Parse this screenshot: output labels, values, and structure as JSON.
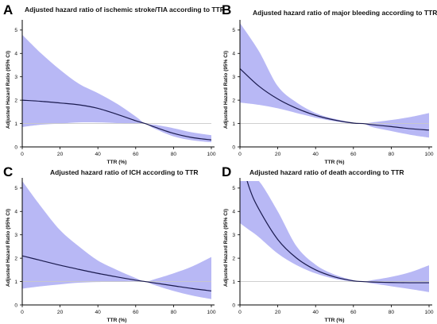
{
  "figure": {
    "panels": [
      {
        "letter": "A",
        "title": "Adjusted hazard ratio of ischemic stroke/TIA according to TTR"
      },
      {
        "letter": "B",
        "title": "Adjusted hazard ratio of major bleeding according to TTR"
      },
      {
        "letter": "C",
        "title": "Adjusted hazard ratio of ICH according to TTR"
      },
      {
        "letter": "D",
        "title": "Adjusted hazard ratio of death according to TTR"
      }
    ]
  },
  "chart_data": [
    {
      "type": "line",
      "title": "Adjusted hazard ratio of ischemic stroke/TIA according to TTR",
      "xlabel": "TTR (%)",
      "ylabel": "Adjusted Hazard Ratio (95% CI)",
      "xlim": [
        0,
        100
      ],
      "ylim": [
        0,
        5.3
      ],
      "xticks": [
        0,
        20,
        40,
        60,
        80,
        100
      ],
      "yticks": [
        0,
        1,
        2,
        3,
        4,
        5
      ],
      "reference_line": 1,
      "colors": {
        "line": "#1a1a4e",
        "band": "#b8b8f5"
      },
      "x": [
        0,
        10,
        20,
        30,
        40,
        50,
        60,
        65,
        70,
        80,
        90,
        100
      ],
      "series": [
        {
          "values": [
            2.0,
            1.95,
            1.88,
            1.8,
            1.65,
            1.4,
            1.12,
            1.0,
            0.85,
            0.58,
            0.4,
            0.3
          ]
        }
      ],
      "ci_lower": [
        0.85,
        0.95,
        1.0,
        1.05,
        1.05,
        1.02,
        1.0,
        1.0,
        0.78,
        0.45,
        0.28,
        0.2
      ],
      "ci_upper": [
        4.8,
        4.0,
        3.3,
        2.7,
        2.3,
        1.85,
        1.3,
        1.0,
        0.95,
        0.8,
        0.62,
        0.5
      ]
    },
    {
      "type": "line",
      "title": "Adjusted hazard ratio of major bleeding according to TTR",
      "xlabel": "TTR (%)",
      "ylabel": "Adjusted Hazard Ratio (95% CI)",
      "xlim": [
        0,
        100
      ],
      "ylim": [
        0,
        5.3
      ],
      "xticks": [
        0,
        20,
        40,
        60,
        80,
        100
      ],
      "yticks": [
        0,
        1,
        2,
        3,
        4,
        5
      ],
      "reference_line": 1,
      "colors": {
        "line": "#1a1a4e",
        "band": "#b8b8f5"
      },
      "x": [
        0,
        10,
        20,
        30,
        40,
        50,
        60,
        65,
        70,
        80,
        90,
        100
      ],
      "series": [
        {
          "values": [
            3.35,
            2.6,
            2.05,
            1.65,
            1.35,
            1.15,
            1.02,
            1.0,
            0.95,
            0.87,
            0.78,
            0.72
          ]
        }
      ],
      "ci_lower": [
        1.9,
        1.8,
        1.65,
        1.45,
        1.25,
        1.1,
        1.0,
        1.0,
        0.85,
        0.68,
        0.52,
        0.4
      ],
      "ci_upper": [
        5.3,
        4.1,
        2.6,
        1.9,
        1.45,
        1.2,
        1.04,
        1.0,
        1.05,
        1.15,
        1.28,
        1.45
      ]
    },
    {
      "type": "line",
      "title": "Adjusted hazard ratio of ICH according to TTR",
      "xlabel": "TTR (%)",
      "ylabel": "Adjusted Hazard Ratio (95% CI)",
      "xlim": [
        0,
        100
      ],
      "ylim": [
        0,
        5.3
      ],
      "xticks": [
        0,
        20,
        40,
        60,
        80,
        100
      ],
      "yticks": [
        0,
        1,
        2,
        3,
        4,
        5
      ],
      "reference_line": 1,
      "colors": {
        "line": "#1a1a4e",
        "band": "#b8b8f5"
      },
      "x": [
        0,
        10,
        20,
        30,
        40,
        50,
        60,
        65,
        70,
        80,
        90,
        100
      ],
      "series": [
        {
          "values": [
            2.1,
            1.9,
            1.7,
            1.52,
            1.35,
            1.2,
            1.06,
            1.0,
            0.94,
            0.82,
            0.7,
            0.6
          ]
        }
      ],
      "ci_lower": [
        0.7,
        0.8,
        0.88,
        0.95,
        0.98,
        1.0,
        1.0,
        1.0,
        0.85,
        0.6,
        0.4,
        0.25
      ],
      "ci_upper": [
        5.3,
        4.2,
        3.2,
        2.5,
        1.9,
        1.5,
        1.15,
        1.0,
        1.1,
        1.35,
        1.65,
        2.05
      ]
    },
    {
      "type": "line",
      "title": "Adjusted hazard ratio of death according to TTR",
      "xlabel": "TTR (%)",
      "ylabel": "Adjusted Hazard Ratio (95% CI)",
      "xlim": [
        0,
        100
      ],
      "ylim": [
        0,
        5.3
      ],
      "xticks": [
        0,
        20,
        40,
        60,
        80,
        100
      ],
      "yticks": [
        0,
        1,
        2,
        3,
        4,
        5
      ],
      "reference_line": 1,
      "colors": {
        "line": "#1a1a4e",
        "band": "#b8b8f5"
      },
      "x": [
        0,
        5,
        10,
        20,
        30,
        40,
        50,
        60,
        65,
        70,
        80,
        90,
        100
      ],
      "series": [
        {
          "values": [
            6.4,
            5.0,
            4.1,
            2.8,
            2.0,
            1.5,
            1.2,
            1.03,
            1.0,
            0.98,
            0.96,
            0.95,
            0.95
          ]
        }
      ],
      "ci_lower": [
        3.5,
        3.2,
        2.9,
        2.2,
        1.7,
        1.35,
        1.12,
        1.0,
        1.0,
        0.92,
        0.8,
        0.68,
        0.55
      ],
      "ci_upper": [
        5.3,
        5.3,
        5.3,
        4.0,
        2.5,
        1.72,
        1.3,
        1.06,
        1.0,
        1.06,
        1.2,
        1.4,
        1.7
      ]
    }
  ]
}
